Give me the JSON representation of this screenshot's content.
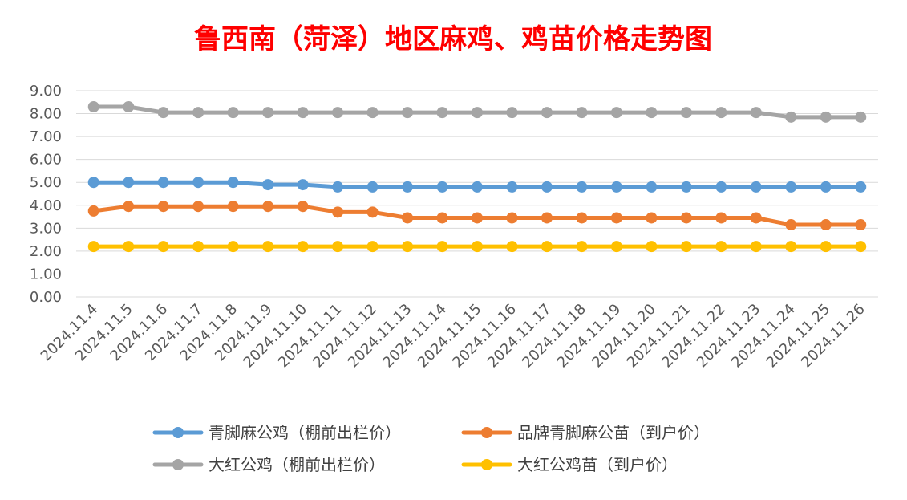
{
  "chart_data": {
    "type": "line",
    "title": "鲁西南（菏泽）地区麻鸡、鸡苗价格走势图",
    "title_color": "#ff0000",
    "ylim": [
      0,
      9
    ],
    "yticks": [
      "0.00",
      "1.00",
      "2.00",
      "3.00",
      "4.00",
      "5.00",
      "6.00",
      "7.00",
      "8.00",
      "9.00"
    ],
    "grid": true,
    "legend_position": "bottom",
    "categories": [
      "2024.11.4",
      "2024.11.5",
      "2024.11.6",
      "2024.11.7",
      "2024.11.8",
      "2024.11.9",
      "2024.11.10",
      "2024.11.11",
      "2024.11.12",
      "2024.11.13",
      "2024.11.14",
      "2024.11.15",
      "2024.11.16",
      "2024.11.17",
      "2024.11.18",
      "2024.11.19",
      "2024.11.20",
      "2024.11.21",
      "2024.11.22",
      "2024.11.23",
      "2024.11.24",
      "2024.11.25",
      "2024.11.26"
    ],
    "series": [
      {
        "name": "青脚麻公鸡（棚前出栏价）",
        "color": "#5b9bd5",
        "values": [
          5.0,
          5.0,
          5.0,
          5.0,
          5.0,
          4.9,
          4.9,
          4.8,
          4.8,
          4.8,
          4.8,
          4.8,
          4.8,
          4.8,
          4.8,
          4.8,
          4.8,
          4.8,
          4.8,
          4.8,
          4.8,
          4.8,
          4.8
        ]
      },
      {
        "name": "品牌青脚麻公苗（到户价）",
        "color": "#ed7d31",
        "values": [
          3.75,
          3.95,
          3.95,
          3.95,
          3.95,
          3.95,
          3.95,
          3.7,
          3.7,
          3.45,
          3.45,
          3.45,
          3.45,
          3.45,
          3.45,
          3.45,
          3.45,
          3.45,
          3.45,
          3.45,
          3.15,
          3.15,
          3.15
        ]
      },
      {
        "name": "大红公鸡（棚前出栏价）",
        "color": "#a5a5a5",
        "values": [
          8.3,
          8.3,
          8.05,
          8.05,
          8.05,
          8.05,
          8.05,
          8.05,
          8.05,
          8.05,
          8.05,
          8.05,
          8.05,
          8.05,
          8.05,
          8.05,
          8.05,
          8.05,
          8.05,
          8.05,
          7.85,
          7.85,
          7.85
        ]
      },
      {
        "name": "大红公鸡苗（到户价）",
        "color": "#ffc000",
        "values": [
          2.2,
          2.2,
          2.2,
          2.2,
          2.2,
          2.2,
          2.2,
          2.2,
          2.2,
          2.2,
          2.2,
          2.2,
          2.2,
          2.2,
          2.2,
          2.2,
          2.2,
          2.2,
          2.2,
          2.2,
          2.2,
          2.2,
          2.2
        ]
      }
    ]
  }
}
